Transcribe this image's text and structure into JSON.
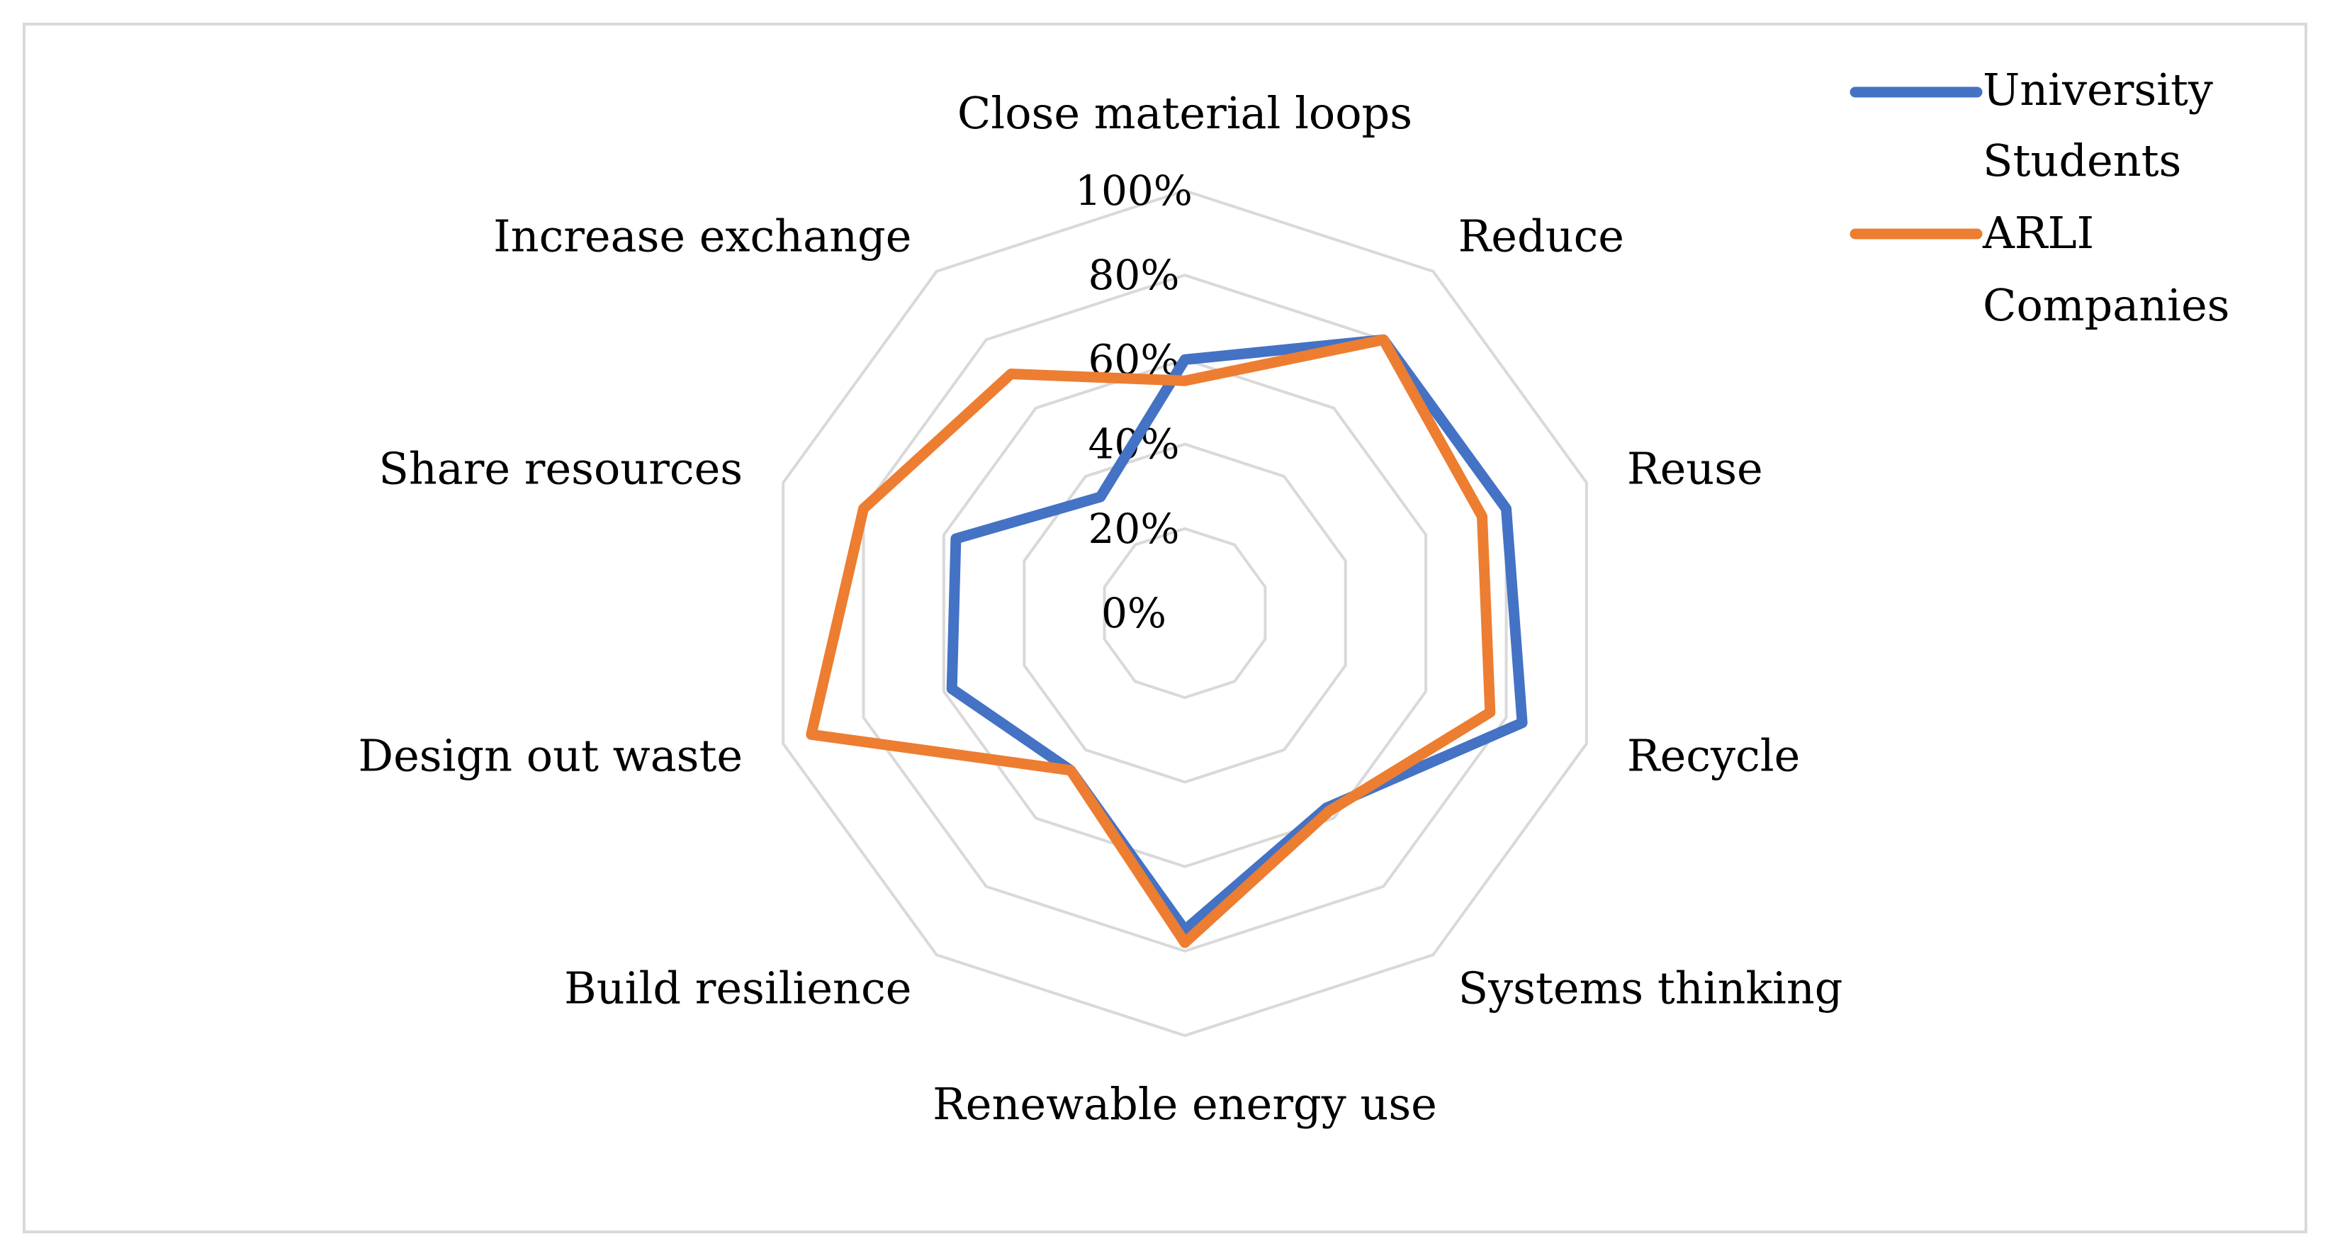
{
  "chart_data": {
    "type": "radar",
    "title": "",
    "categories": [
      "Close material loops",
      "Reduce",
      "Reuse",
      "Recycle",
      "Systems thinking",
      "Renewable energy use",
      "Build resilience",
      "Design out waste",
      "Share resources",
      "Increase exchange"
    ],
    "axis": {
      "min": 0,
      "max": 100,
      "ticks": [
        0,
        20,
        40,
        60,
        80,
        100
      ],
      "tick_labels": [
        "0%",
        "20%",
        "40%",
        "60%",
        "80%",
        "100%"
      ]
    },
    "series": [
      {
        "name": "University Students",
        "legend_lines": [
          "University",
          "Students"
        ],
        "color": "#4472c4",
        "values": [
          60,
          80,
          80,
          84,
          57,
          75,
          46,
          58,
          57,
          34
        ]
      },
      {
        "name": "ARLI Companies",
        "legend_lines": [
          "ARLI",
          "Companies"
        ],
        "color": "#ed7d31",
        "values": [
          55,
          80,
          74,
          76,
          58,
          78,
          46,
          93,
          80,
          70
        ]
      }
    ],
    "legend_position": "top-right",
    "grid_color": "#d9d9d9"
  }
}
